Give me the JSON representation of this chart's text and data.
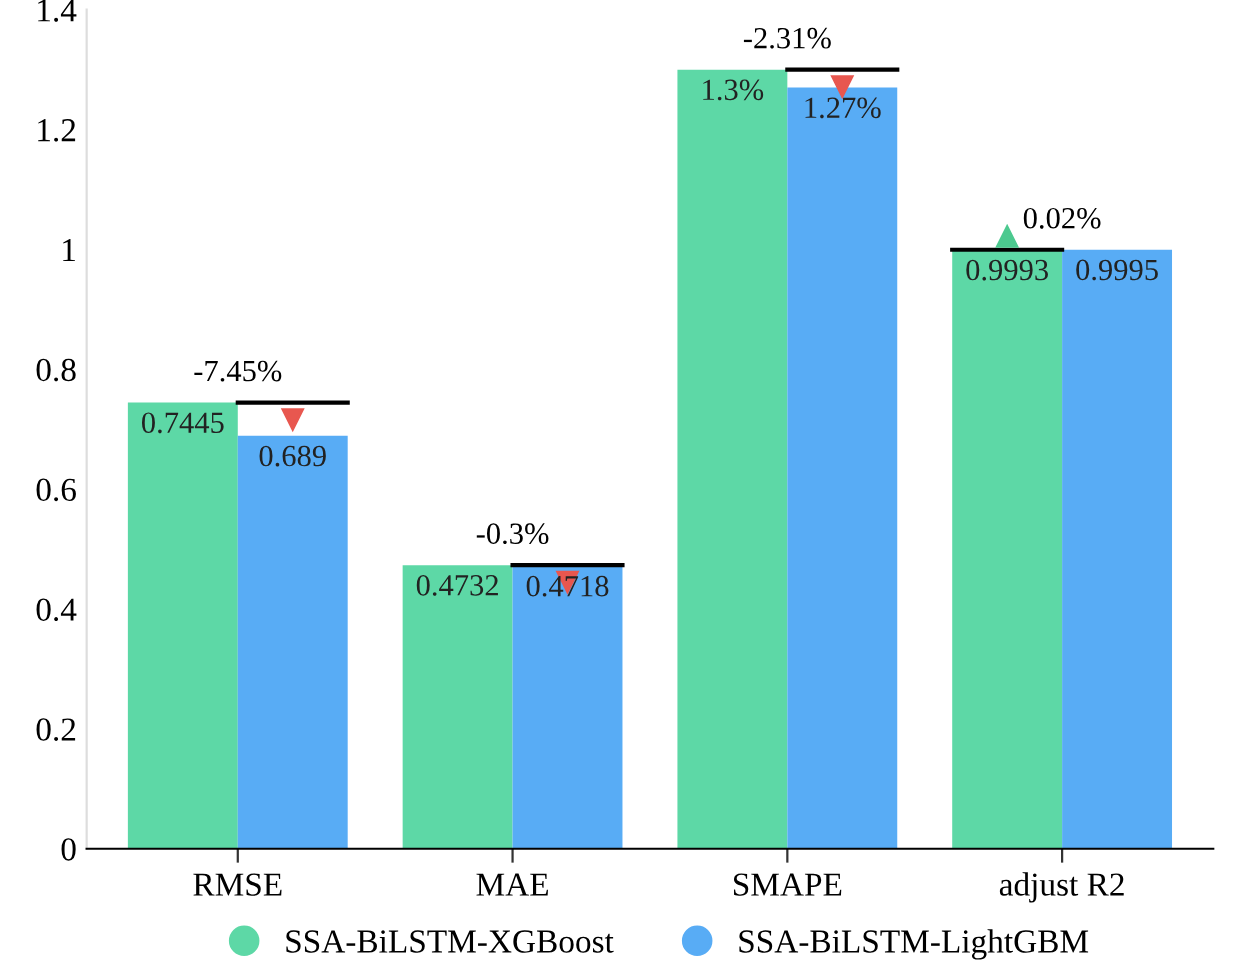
{
  "chart_data": {
    "type": "bar",
    "categories": [
      "RMSE",
      "MAE",
      "SMAPE",
      "adjust R2"
    ],
    "series": [
      {
        "name": "SSA-BiLSTM-XGBoost",
        "color": "#5dd8a6",
        "values": [
          0.7445,
          0.4732,
          1.3,
          0.9993
        ],
        "value_labels": [
          "0.7445",
          "0.4732",
          "1.3%",
          "0.9993"
        ]
      },
      {
        "name": "SSA-BiLSTM-LightGBM",
        "color": "#58acf5",
        "values": [
          0.689,
          0.4718,
          1.27,
          0.9995
        ],
        "value_labels": [
          "0.689",
          "0.4718",
          "1.27%",
          "0.9995"
        ]
      }
    ],
    "ylim": [
      0,
      1.4
    ],
    "yticks": [
      0,
      0.2,
      0.4,
      0.6,
      0.8,
      1,
      1.2,
      1.4
    ],
    "grid": false,
    "legend": "bottom",
    "annotations": [
      {
        "text": "-7.45%",
        "x": "RMSE",
        "y": 0.7445
      },
      {
        "text": "-0.3%",
        "x": "MAE",
        "y": 0.4732
      },
      {
        "text": "-2.31%",
        "x": "SMAPE",
        "y": 1.3
      },
      {
        "text": "0.02%",
        "x": "adjust R2",
        "y": 0.9995
      }
    ]
  }
}
